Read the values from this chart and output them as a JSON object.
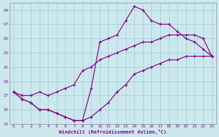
{
  "xlabel": "Windchill (Refroidissement éolien,°C)",
  "bg_color": "#cce8ee",
  "line_color": "#880088",
  "grid_color": "#99cccc",
  "xlim": [
    -0.5,
    23.5
  ],
  "ylim": [
    13,
    30
  ],
  "yticks": [
    13,
    15,
    17,
    19,
    21,
    23,
    25,
    27,
    29
  ],
  "xticks": [
    0,
    1,
    2,
    3,
    4,
    5,
    6,
    7,
    8,
    9,
    10,
    11,
    12,
    13,
    14,
    15,
    16,
    17,
    18,
    19,
    20,
    21,
    22,
    23
  ],
  "line1_x": [
    0,
    1,
    2,
    3,
    4,
    5,
    6,
    7,
    8,
    9,
    10,
    11,
    12,
    13,
    14,
    15,
    16,
    17,
    18,
    19,
    20,
    21,
    22,
    23
  ],
  "line1_y": [
    17.5,
    16.5,
    16.0,
    15.0,
    15.0,
    14.5,
    14.0,
    13.5,
    13.5,
    18.0,
    24.5,
    25.0,
    25.5,
    27.5,
    29.5,
    29.0,
    27.5,
    27.0,
    27.0,
    26.0,
    25.0,
    24.5,
    23.5,
    22.5
  ],
  "line2_x": [
    0,
    1,
    2,
    3,
    4,
    5,
    6,
    7,
    8,
    9,
    10,
    11,
    12,
    13,
    14,
    15,
    16,
    17,
    18,
    19,
    20,
    21,
    22,
    23
  ],
  "line2_y": [
    17.5,
    17.0,
    17.0,
    17.5,
    17.0,
    17.5,
    18.0,
    18.5,
    20.5,
    21.0,
    22.0,
    22.5,
    23.0,
    23.5,
    24.0,
    24.5,
    24.5,
    25.0,
    25.5,
    25.5,
    25.5,
    25.5,
    25.0,
    22.5
  ],
  "line3_x": [
    0,
    1,
    2,
    3,
    4,
    5,
    6,
    7,
    8,
    9,
    10,
    11,
    12,
    13,
    14,
    15,
    16,
    17,
    18,
    19,
    20,
    21,
    22,
    23
  ],
  "line3_y": [
    17.5,
    16.5,
    16.0,
    15.0,
    15.0,
    14.5,
    14.0,
    13.5,
    13.5,
    14.0,
    15.0,
    16.0,
    17.5,
    18.5,
    20.0,
    20.5,
    21.0,
    21.5,
    22.0,
    22.0,
    22.5,
    22.5,
    22.5,
    22.5
  ]
}
